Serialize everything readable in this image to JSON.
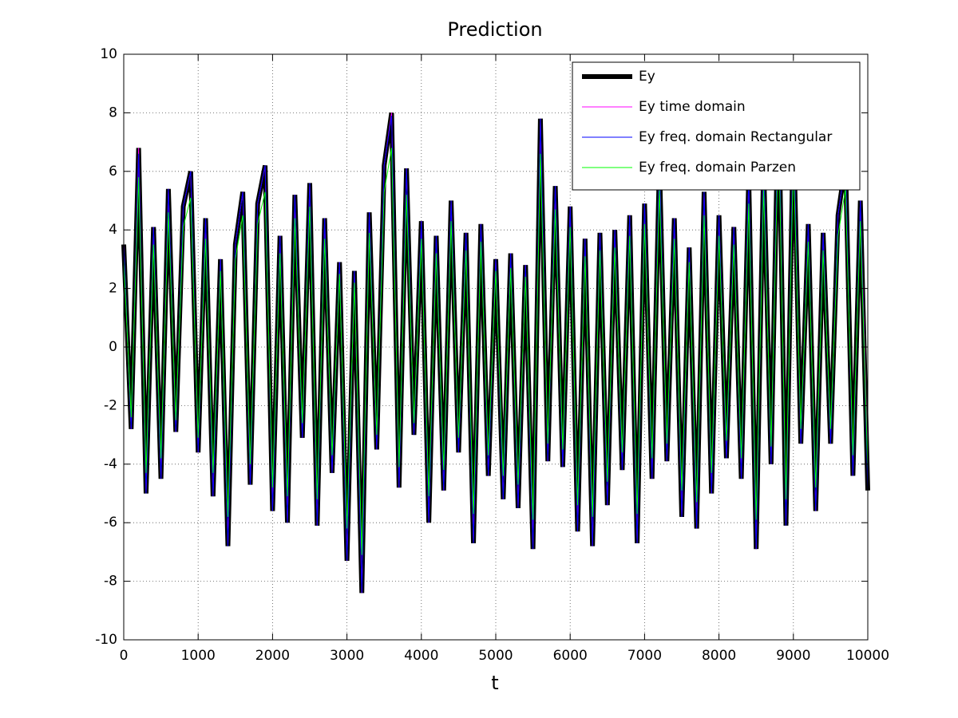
{
  "chart_data": {
    "type": "line",
    "title": "Prediction",
    "x_label": "t",
    "x": [
      0,
      100,
      200,
      300,
      400,
      500,
      600,
      700,
      800,
      900,
      1000,
      1100,
      1200,
      1300,
      1400,
      1500,
      1600,
      1700,
      1800,
      1900,
      2000,
      2100,
      2200,
      2300,
      2400,
      2500,
      2600,
      2700,
      2800,
      2900,
      3000,
      3100,
      3200,
      3300,
      3400,
      3500,
      3600,
      3700,
      3800,
      3900,
      4000,
      4100,
      4200,
      4300,
      4400,
      4500,
      4600,
      4700,
      4800,
      4900,
      5000,
      5100,
      5200,
      5300,
      5400,
      5500,
      5600,
      5700,
      5800,
      5900,
      6000,
      6100,
      6200,
      6300,
      6400,
      6500,
      6600,
      6700,
      6800,
      6900,
      7000,
      7100,
      7200,
      7300,
      7400,
      7500,
      7600,
      7700,
      7800,
      7900,
      8000,
      8100,
      8200,
      8300,
      8400,
      8500,
      8600,
      8700,
      8800,
      8900,
      9000,
      9100,
      9200,
      9300,
      9400,
      9500,
      9600,
      9700,
      9800,
      9900,
      10000
    ],
    "series": [
      {
        "name": "Ey",
        "color": "#000000",
        "width": 6,
        "values": [
          3.5,
          -2.8,
          6.8,
          -5.0,
          4.1,
          -4.5,
          5.4,
          -2.9,
          4.8,
          6.0,
          -3.6,
          4.4,
          -5.1,
          3.0,
          -6.8,
          3.5,
          5.3,
          -4.7,
          4.9,
          6.2,
          -5.6,
          3.8,
          -6.0,
          5.2,
          -3.1,
          5.6,
          -6.1,
          4.4,
          -4.3,
          2.9,
          -7.3,
          2.6,
          -8.4,
          4.6,
          -3.5,
          6.2,
          8.0,
          -4.8,
          6.1,
          -3.0,
          4.3,
          -6.0,
          3.8,
          -4.9,
          5.0,
          -3.6,
          3.9,
          -6.7,
          4.2,
          -4.4,
          3.0,
          -5.2,
          3.2,
          -5.5,
          2.8,
          -6.9,
          7.8,
          -3.9,
          5.5,
          -4.1,
          4.8,
          -6.3,
          3.7,
          -6.8,
          3.9,
          -5.4,
          4.0,
          -4.2,
          4.5,
          -6.7,
          4.9,
          -4.5,
          6.3,
          -3.9,
          4.4,
          -5.8,
          3.4,
          -6.2,
          5.3,
          -5.0,
          4.5,
          -3.8,
          4.1,
          -4.5,
          5.8,
          -6.9,
          6.3,
          -4.0,
          8.8,
          -6.1,
          7.6,
          -3.3,
          4.2,
          -5.6,
          3.9,
          -3.3,
          4.5,
          6.3,
          -4.4,
          5.0,
          -4.9
        ]
      },
      {
        "name": "Ey time domain",
        "color": "#ff00ff",
        "width": 1,
        "values": [
          3.5,
          -2.8,
          6.8,
          -5.0,
          4.1,
          -4.5,
          5.4,
          -2.9,
          4.8,
          6.0,
          -3.6,
          4.4,
          -5.1,
          3.0,
          -6.8,
          3.5,
          5.3,
          -4.7,
          4.9,
          6.2,
          -5.6,
          3.8,
          -6.0,
          5.2,
          -3.1,
          5.6,
          -6.1,
          4.4,
          -4.3,
          2.9,
          -7.3,
          2.6,
          -8.4,
          4.6,
          -3.5,
          6.2,
          8.0,
          -4.8,
          6.1,
          -3.0,
          4.3,
          -6.0,
          3.8,
          -4.9,
          5.0,
          -3.6,
          3.9,
          -6.7,
          4.2,
          -4.4,
          3.0,
          -5.2,
          3.2,
          -5.5,
          2.8,
          -6.9,
          7.8,
          -3.9,
          5.5,
          -4.1,
          4.8,
          -6.3,
          3.7,
          -6.8,
          3.9,
          -5.4,
          4.0,
          -4.2,
          4.5,
          -6.7,
          4.9,
          -4.5,
          6.3,
          -3.9,
          4.4,
          -5.8,
          3.4,
          -6.2,
          5.3,
          -5.0,
          4.5,
          -3.8,
          4.1,
          -4.5,
          5.8,
          -6.9,
          6.3,
          -4.0,
          8.8,
          -6.1,
          7.6,
          -3.3,
          4.2,
          -5.6,
          3.9,
          -3.3,
          4.5,
          6.3,
          -4.4,
          5.0,
          -4.0
        ]
      },
      {
        "name": "Ey freq. domain Rectangular",
        "color": "#0000ff",
        "width": 1,
        "values": [
          3.5,
          -2.8,
          6.6,
          -5.0,
          4.1,
          -4.5,
          5.4,
          -2.9,
          4.8,
          6.0,
          -3.6,
          4.4,
          -5.1,
          3.0,
          -6.8,
          3.5,
          5.3,
          -4.7,
          4.9,
          6.2,
          -5.6,
          3.8,
          -6.0,
          5.2,
          -3.1,
          5.6,
          -6.1,
          4.4,
          -4.3,
          2.9,
          -7.3,
          2.6,
          -8.4,
          4.6,
          -3.5,
          6.2,
          7.9,
          -4.8,
          6.1,
          -3.0,
          4.3,
          -6.0,
          3.8,
          -4.9,
          5.0,
          -3.6,
          3.9,
          -6.7,
          4.2,
          -4.4,
          3.0,
          -5.2,
          3.2,
          -5.5,
          2.8,
          -6.9,
          7.8,
          -3.9,
          5.5,
          -4.1,
          4.8,
          -6.3,
          3.7,
          -6.8,
          3.9,
          -5.4,
          4.0,
          -4.2,
          4.5,
          -6.7,
          4.9,
          -4.5,
          6.3,
          -3.9,
          4.4,
          -5.8,
          3.4,
          -6.2,
          5.3,
          -5.0,
          4.5,
          -3.8,
          4.1,
          -4.5,
          5.8,
          -6.9,
          6.3,
          -4.0,
          8.7,
          -6.1,
          7.6,
          -3.3,
          4.2,
          -5.6,
          3.9,
          -3.3,
          4.5,
          6.3,
          -4.4,
          5.0,
          -4.9
        ]
      },
      {
        "name": "Ey freq. domain Parzen",
        "color": "#00ff00",
        "width": 1,
        "values": [
          3.0,
          -2.4,
          5.8,
          -4.3,
          3.5,
          -3.8,
          4.6,
          -2.5,
          4.1,
          5.1,
          -3.1,
          3.7,
          -4.3,
          2.6,
          -5.8,
          3.0,
          4.5,
          -4.0,
          4.2,
          5.3,
          -4.8,
          3.2,
          -5.1,
          4.4,
          -2.6,
          4.8,
          -5.2,
          3.7,
          -3.7,
          2.5,
          -6.2,
          2.2,
          -7.1,
          3.9,
          -3.0,
          5.3,
          6.8,
          -4.1,
          5.2,
          -2.6,
          3.7,
          -5.1,
          3.2,
          -4.2,
          4.3,
          -3.1,
          3.3,
          -5.7,
          3.6,
          -3.7,
          2.6,
          -4.4,
          2.7,
          -4.7,
          2.4,
          -5.9,
          6.6,
          -3.3,
          4.7,
          -3.5,
          4.1,
          -5.4,
          3.1,
          -5.8,
          3.3,
          -4.6,
          3.4,
          -3.6,
          3.8,
          -5.7,
          4.2,
          -3.8,
          5.4,
          -3.3,
          3.7,
          -4.9,
          2.9,
          -5.3,
          4.5,
          -4.3,
          3.8,
          -3.2,
          3.5,
          -3.8,
          4.9,
          -5.9,
          5.4,
          -3.4,
          7.5,
          -5.2,
          6.5,
          -2.8,
          3.6,
          -4.8,
          3.3,
          -2.8,
          3.8,
          5.4,
          -3.7,
          4.3,
          -4.2
        ]
      }
    ],
    "xlim": [
      0,
      10000
    ],
    "xticks": [
      0,
      1000,
      2000,
      3000,
      4000,
      5000,
      6000,
      7000,
      8000,
      9000,
      10000
    ],
    "ylim": [
      -10,
      10
    ],
    "yticks": [
      -10,
      -8,
      -6,
      -4,
      -2,
      0,
      2,
      4,
      6,
      8,
      10
    ],
    "grid": true,
    "legend": "upper right"
  }
}
